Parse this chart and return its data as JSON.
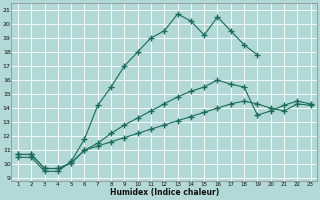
{
  "xlabel": "Humidex (Indice chaleur)",
  "bg_color": "#b2d8d8",
  "grid_color": "#ffffff",
  "line_color": "#1a6b5a",
  "xlim": [
    0.5,
    23.5
  ],
  "ylim": [
    8.8,
    21.5
  ],
  "xticks": [
    1,
    2,
    3,
    4,
    5,
    6,
    7,
    8,
    9,
    10,
    11,
    12,
    13,
    14,
    15,
    16,
    17,
    18,
    19,
    20,
    21,
    22,
    23
  ],
  "yticks": [
    9,
    10,
    11,
    12,
    13,
    14,
    15,
    16,
    17,
    18,
    19,
    20,
    21
  ],
  "line1_x": [
    1,
    2,
    3,
    4,
    5,
    6,
    7,
    8,
    9,
    10,
    11,
    12,
    13,
    14,
    15,
    16,
    17,
    18,
    19
  ],
  "line1_y": [
    10.5,
    10.5,
    9.5,
    9.5,
    10.2,
    11.8,
    14.2,
    15.5,
    17.0,
    18.0,
    19.0,
    19.5,
    20.7,
    20.2,
    19.2,
    20.5,
    19.5,
    18.5,
    17.8
  ],
  "line2_x": [
    1,
    2,
    3,
    4,
    5,
    6,
    7,
    8,
    9,
    10,
    11,
    12,
    13,
    14,
    15,
    16,
    17,
    18,
    19,
    20,
    21,
    22,
    23
  ],
  "line2_y": [
    10.7,
    10.7,
    9.7,
    9.7,
    10.1,
    11.0,
    11.5,
    12.2,
    12.8,
    13.3,
    13.8,
    14.3,
    14.8,
    15.2,
    15.5,
    16.0,
    15.7,
    15.5,
    13.5,
    13.8,
    14.2,
    14.5,
    14.3
  ],
  "line3_x": [
    1,
    2,
    3,
    4,
    5,
    6,
    7,
    8,
    9,
    10,
    11,
    12,
    13,
    14,
    15,
    16,
    17,
    18,
    19,
    20,
    21,
    22,
    23
  ],
  "line3_y": [
    10.7,
    10.7,
    9.7,
    9.7,
    10.1,
    11.0,
    11.3,
    11.6,
    11.9,
    12.2,
    12.5,
    12.8,
    13.1,
    13.4,
    13.7,
    14.0,
    14.3,
    14.5,
    14.3,
    14.0,
    13.8,
    14.3,
    14.2
  ]
}
